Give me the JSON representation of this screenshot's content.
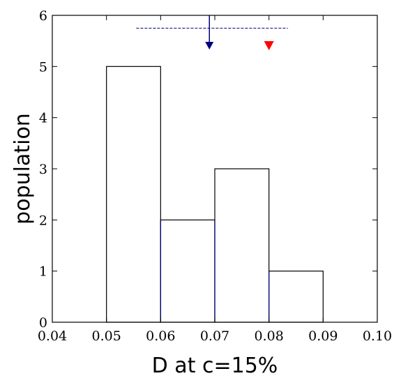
{
  "chart_data": {
    "type": "bar",
    "subtype": "histogram",
    "bins": [
      {
        "x0": 0.05,
        "x1": 0.06,
        "count": 5
      },
      {
        "x0": 0.06,
        "x1": 0.07,
        "count": 2
      },
      {
        "x0": 0.07,
        "x1": 0.08,
        "count": 3
      },
      {
        "x0": 0.08,
        "x1": 0.09,
        "count": 1
      }
    ],
    "xlabel": "D at c=15%",
    "ylabel": "population",
    "xlim": [
      0.04,
      0.1
    ],
    "ylim": [
      0,
      6
    ],
    "xticks": [
      "0.04",
      "0.05",
      "0.06",
      "0.07",
      "0.08",
      "0.09",
      "0.10"
    ],
    "yticks": [
      "0",
      "1",
      "2",
      "3",
      "4",
      "5",
      "6"
    ],
    "grid": false,
    "annotations": {
      "mean_marker": {
        "x": 0.069,
        "color": "#00007f"
      },
      "reference_marker": {
        "x": 0.08,
        "color": "#ff0000"
      },
      "range_line": {
        "x_from": 0.0555,
        "x_to": 0.0835,
        "y": 5.75,
        "color": "#00007f"
      }
    },
    "bar_fill": "#ffffff",
    "bar_edge": "#000000",
    "inner_edge": "#00007f"
  }
}
